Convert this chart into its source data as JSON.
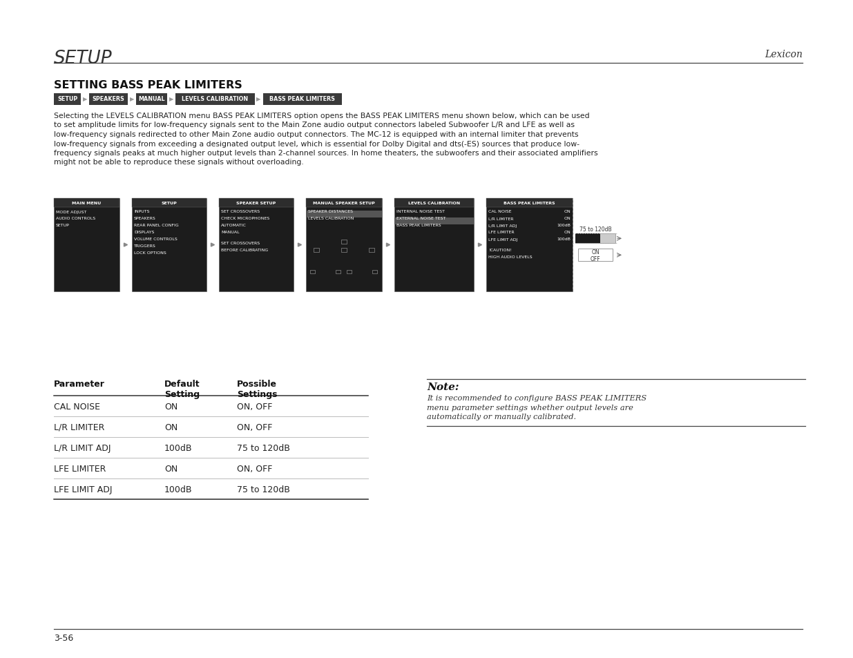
{
  "page_bg": "#ffffff",
  "header_title": "SETUP",
  "header_right": "Lexicon",
  "section_title": "SETTING BASS PEAK LIMITERS",
  "breadcrumb_items": [
    "SETUP",
    "SPEAKERS",
    "MANUAL",
    "LEVELS CALIBRATION",
    "BASS PEAK LIMITERS"
  ],
  "body_text": "Selecting the LEVELS CALIBRATION menu BASS PEAK LIMITERS option opens the BASS PEAK LIMITERS menu shown below, which can be used\nto set amplitude limits for low-frequency signals sent to the Main Zone audio output connectors labeled Subwoofer L/R and LFE as well as\nlow-frequency signals redirected to other Main Zone audio output connectors. The MC-12 is equipped with an internal limiter that prevents\nlow-frequency signals from exceeding a designated output level, which is essential for Dolby Digital and dts(-ES) sources that produce low-\nfrequency signals peaks at much higher output levels than 2-channel sources. In home theaters, the subwoofers and their associated amplifiers\nmight not be able to reproduce these signals without overloading.",
  "menu_col1_title": "MAIN MENU",
  "menu_col1_items": [
    "MODE ADJUST",
    "AUDIO CONTROLS",
    "SETUP"
  ],
  "menu_col2_title": "SETUP",
  "menu_col2_items": [
    "INPUTS",
    "SPEAKERS",
    "REAR PANEL CONFIG",
    "DISPLAYS",
    "VOLUME CONTROLS",
    "TRIGGERS",
    "LOCK OPTIONS"
  ],
  "menu_col3_title": "SPEAKER SETUP",
  "menu_col3_items": [
    "SET CROSSOVERS",
    "CHECK MICROPHONES",
    "AUTOMATIC",
    "MANUAL",
    "",
    "SET CROSSOVERS",
    "BEFORE CALIBRATING"
  ],
  "menu_col4_title": "MANUAL SPEAKER SETUP",
  "menu_col4_items": [
    "SPEAKER DISTANCES",
    "LEVELS CALIBRATION"
  ],
  "menu_col5_title": "LEVELS CALIBRATION",
  "menu_col5_items": [
    "INTERNAL NOISE TEST",
    "EXTERNAL NOISE TEST",
    "BASS PEAK LIMITERS"
  ],
  "menu_col6_title": "BASS PEAK LIMITERS",
  "menu_col6_items_left": [
    "CAL NOISE",
    "L/R LIMITER",
    "L/R LIMIT ADJ",
    "LFE LIMITER",
    "LFE LIMIT ADJ",
    "",
    "!CAUTION!",
    "HIGH AUDIO LEVELS"
  ],
  "menu_col6_items_right": [
    "ON",
    "ON",
    "100dB",
    "ON",
    "100dB",
    "",
    "",
    ""
  ],
  "table_headers": [
    "Parameter",
    "Default\nSetting",
    "Possible\nSettings"
  ],
  "table_rows": [
    [
      "CAL NOISE",
      "ON",
      "ON, OFF"
    ],
    [
      "L/R LIMITER",
      "ON",
      "ON, OFF"
    ],
    [
      "L/R LIMIT ADJ",
      "100dB",
      "75 to 120dB"
    ],
    [
      "LFE LIMITER",
      "ON",
      "ON, OFF"
    ],
    [
      "LFE LIMIT ADJ",
      "100dB",
      "75 to 120dB"
    ]
  ],
  "note_title": "Note:",
  "note_text": "It is recommended to configure BASS PEAK LIMITERS\nmenu parameter settings whether output levels are\nautomatically or manually calibrated.",
  "footer_text": "3-56",
  "slider_label": "75 to 120dB",
  "onoff_label": "ON\nOFF"
}
